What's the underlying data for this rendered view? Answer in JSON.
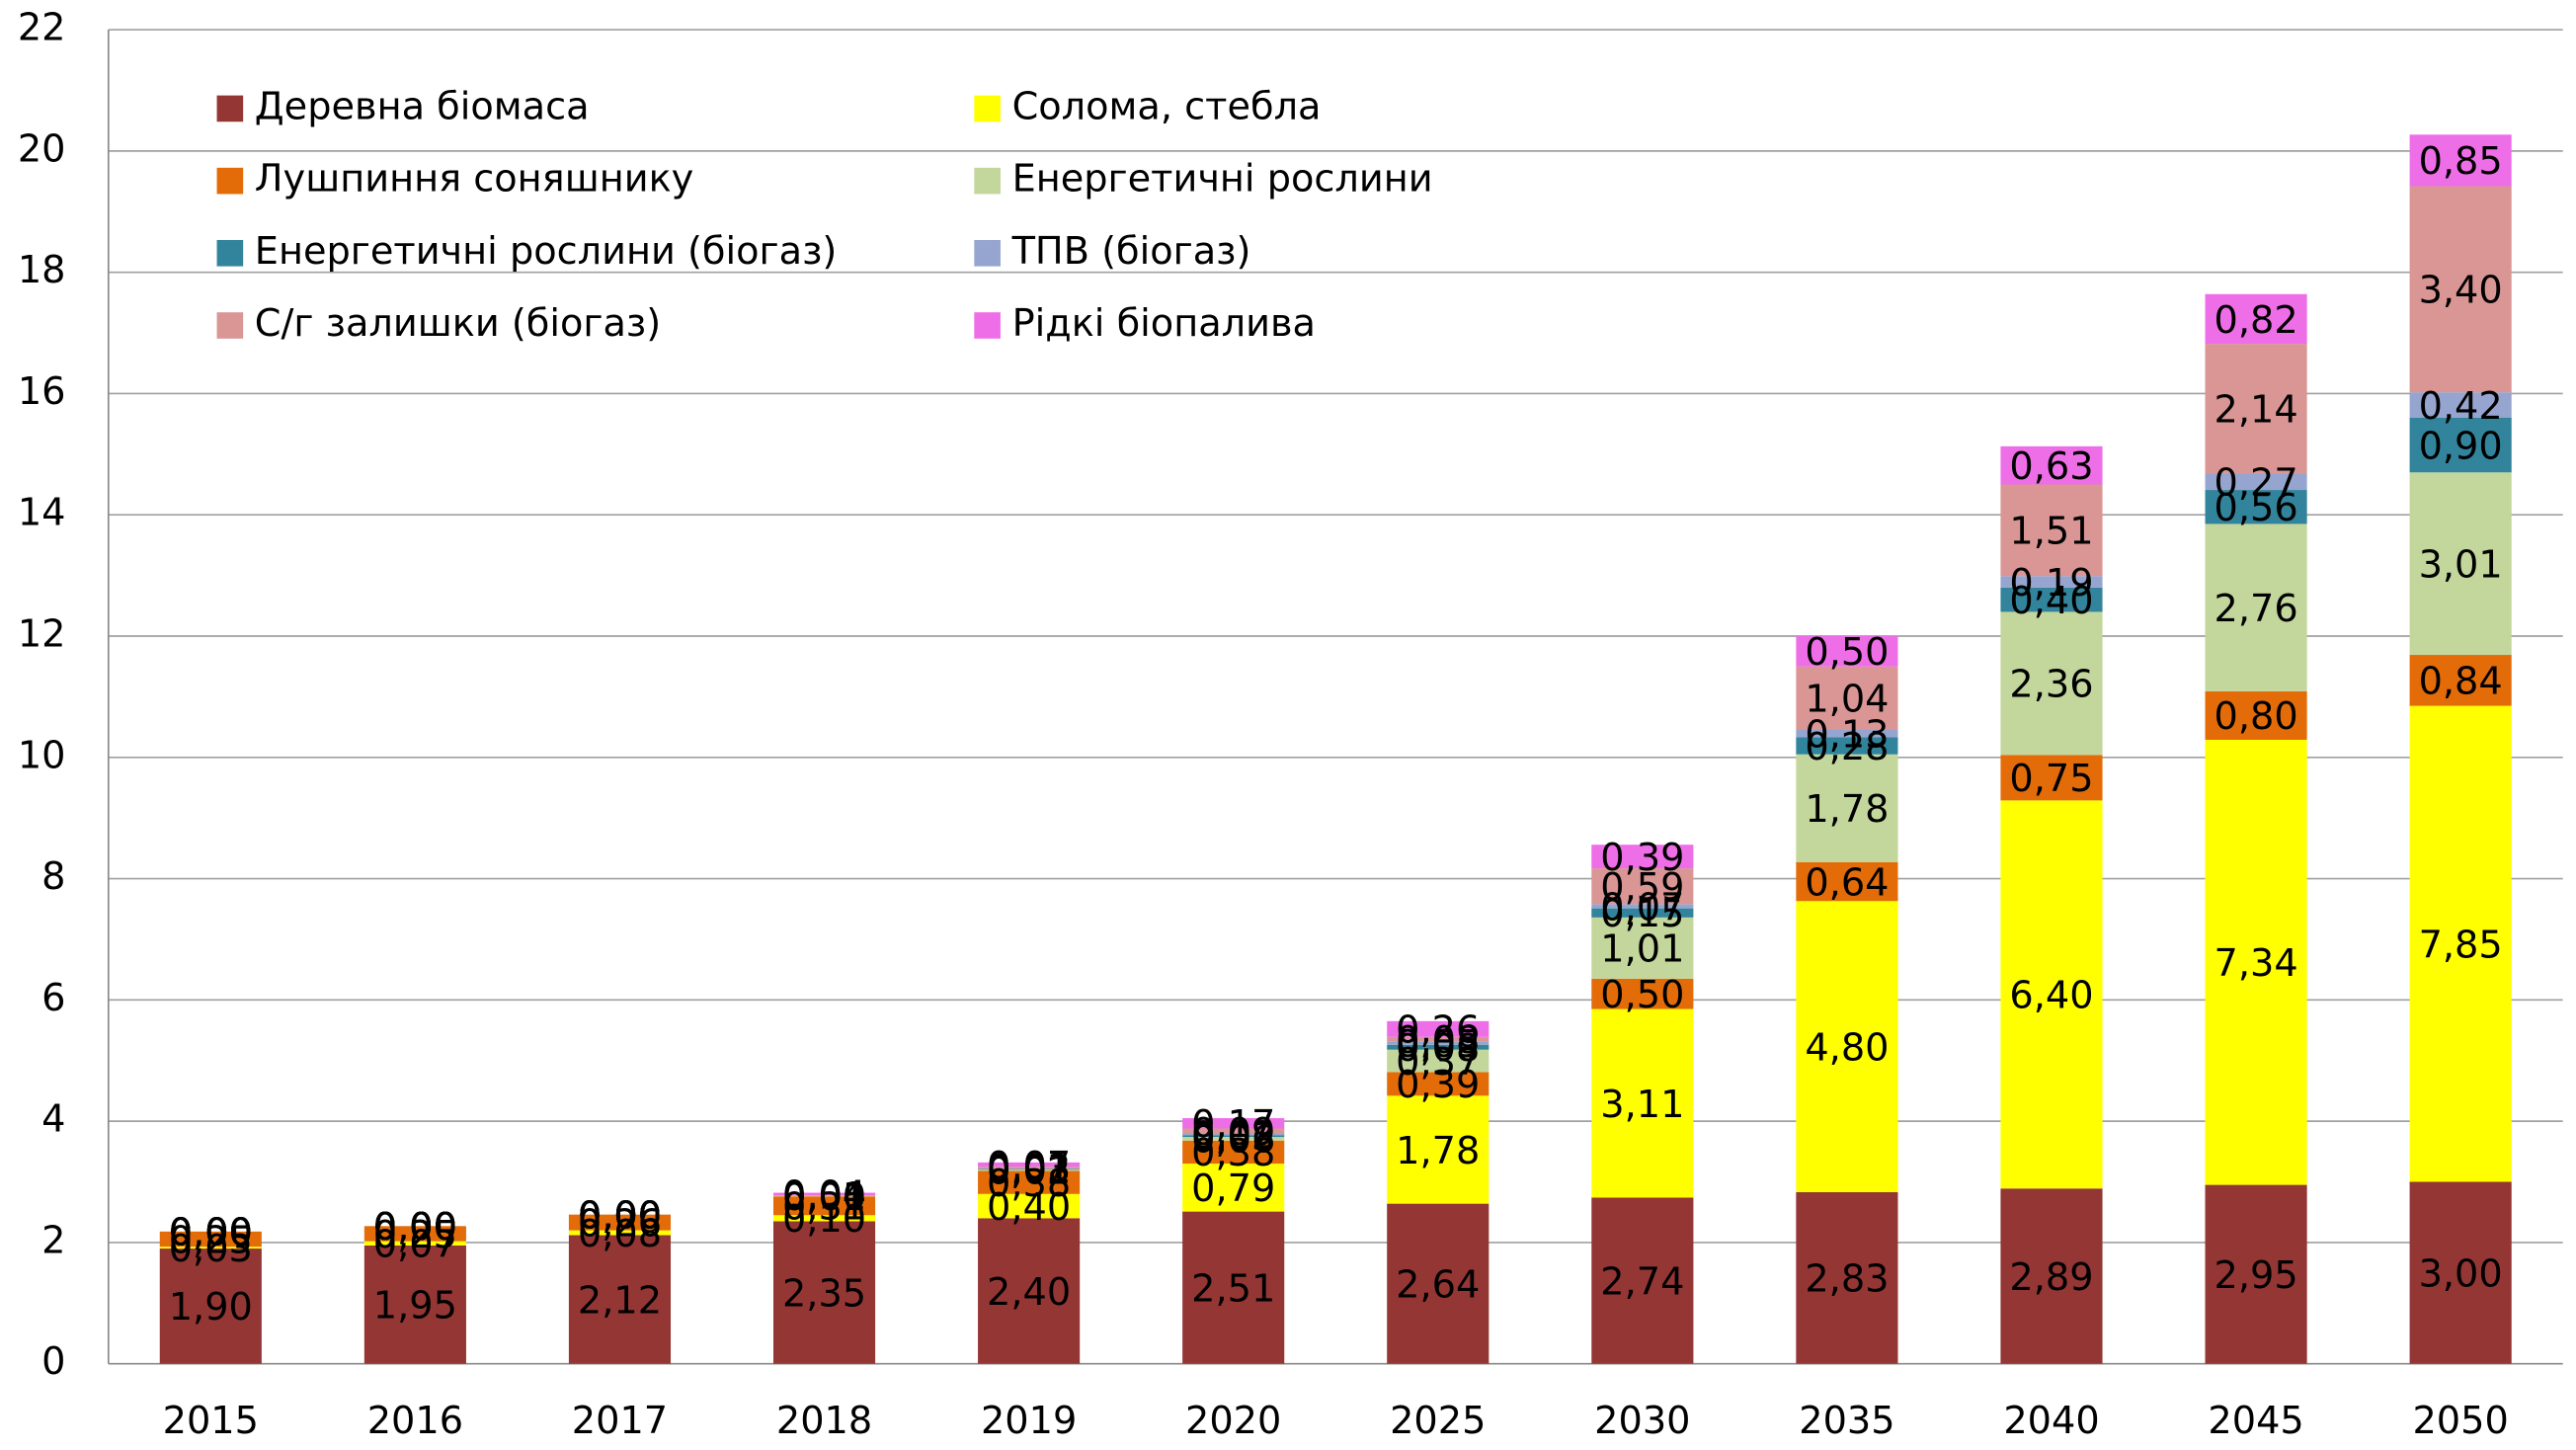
{
  "chart_data": {
    "type": "stacked_bar",
    "categories": [
      "2015",
      "2016",
      "2017",
      "2018",
      "2019",
      "2020",
      "2025",
      "2030",
      "2035",
      "2040",
      "2045",
      "2050"
    ],
    "series": [
      {
        "name": "Деревна біомаса",
        "color": "#943634",
        "values": [
          1.9,
          1.95,
          2.12,
          2.35,
          2.4,
          2.51,
          2.64,
          2.74,
          2.83,
          2.89,
          2.95,
          3.0
        ],
        "value_labels": [
          "1,90",
          "1,95",
          "2,12",
          "2,35",
          "2,40",
          "2,51",
          "2,64",
          "2,74",
          "2,83",
          "2,89",
          "2,95",
          "3,00"
        ]
      },
      {
        "name": "Солома, стебла",
        "color": "#ffff00",
        "values": [
          0.03,
          0.07,
          0.08,
          0.1,
          0.4,
          0.79,
          1.78,
          3.11,
          4.8,
          6.4,
          7.34,
          7.85
        ],
        "value_labels": [
          "0,03",
          "0,07",
          "0,08",
          "0,10",
          "0,40",
          "0,79",
          "1,78",
          "3,11",
          "4,80",
          "6,40",
          "7,34",
          "7,85"
        ]
      },
      {
        "name": "Лушпиння соняшнику",
        "color": "#e36c09",
        "values": [
          0.25,
          0.25,
          0.26,
          0.31,
          0.38,
          0.38,
          0.39,
          0.5,
          0.64,
          0.75,
          0.8,
          0.84
        ],
        "value_labels": [
          "0,25",
          "0,25",
          "0,26",
          "0,31",
          "0,38",
          "0,38",
          "0,39",
          "0,50",
          "0,64",
          "0,75",
          "0,80",
          "0,84"
        ]
      },
      {
        "name": "Енергетичні рослини",
        "color": "#c3d69b",
        "values": [
          0.0,
          0.0,
          0.0,
          0.01,
          0.02,
          0.06,
          0.37,
          1.01,
          1.78,
          2.36,
          2.76,
          3.01
        ],
        "value_labels": [
          "0,00",
          "0,00",
          "0,00",
          "0,01",
          "0,02",
          "0,06",
          "0,37",
          "1,01",
          "1,78",
          "2,36",
          "2,76",
          "3,01"
        ]
      },
      {
        "name": "Енергетичні рослини (біогаз)",
        "color": "#31849b",
        "values": [
          0.0,
          0.0,
          0.0,
          0.0,
          0.01,
          0.03,
          0.08,
          0.15,
          0.28,
          0.4,
          0.56,
          0.9
        ],
        "value_labels": [
          "0,00",
          "0,00",
          "0,00",
          "0,00",
          "0,01",
          "0,03",
          "0,08",
          "0,15",
          "0,28",
          "0,40",
          "0,56",
          "0,90"
        ]
      },
      {
        "name": "ТПВ (біогаз)",
        "color": "#95a5cf",
        "values": [
          0.0,
          0.0,
          0.0,
          0.0,
          0.01,
          0.02,
          0.05,
          0.07,
          0.13,
          0.19,
          0.27,
          0.42
        ],
        "value_labels": [
          "0,00",
          "0,00",
          "0,00",
          "0,00",
          "0,01",
          "0,02",
          "0,05",
          "0,07",
          "0,13",
          "0,19",
          "0,27",
          "0,42"
        ]
      },
      {
        "name": "С/г залишки (біогаз)",
        "color": "#d99694",
        "values": [
          0.0,
          0.0,
          0.0,
          0.01,
          0.03,
          0.09,
          0.08,
          0.59,
          1.04,
          1.51,
          2.14,
          3.4
        ],
        "value_labels": [
          "0,00",
          "0,00",
          "0,00",
          "0,01",
          "0,03",
          "0,09",
          "0,08",
          "0,59",
          "1,04",
          "1,51",
          "2,14",
          "3,40"
        ]
      },
      {
        "name": "Рідкі біопалива",
        "color": "#ee6ee8",
        "values": [
          0.0,
          0.0,
          0.0,
          0.04,
          0.07,
          0.17,
          0.26,
          0.39,
          0.5,
          0.63,
          0.82,
          0.85
        ],
        "value_labels": [
          "0,00",
          "0,00",
          "0,00",
          "0,04",
          "0,07",
          "0,17",
          "0,26",
          "0,39",
          "0,50",
          "0,63",
          "0,82",
          "0,85"
        ]
      }
    ],
    "ylim": [
      0,
      22
    ],
    "yticks": [
      0,
      2,
      4,
      6,
      8,
      10,
      12,
      14,
      16,
      18,
      20,
      22
    ],
    "grid": true
  }
}
